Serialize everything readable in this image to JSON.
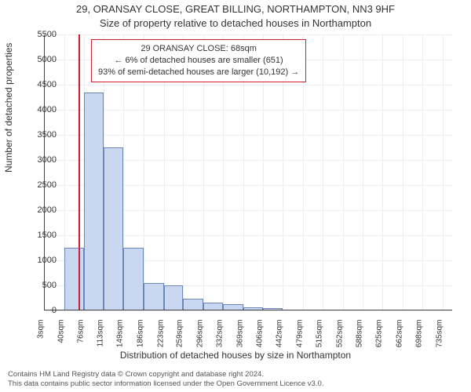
{
  "title_line1": "29, ORANSAY CLOSE, GREAT BILLING, NORTHAMPTON, NN3 9HF",
  "title_line2": "Size of property relative to detached houses in Northampton",
  "ylabel": "Number of detached properties",
  "xlabel": "Distribution of detached houses by size in Northampton",
  "chart": {
    "type": "histogram",
    "background_color": "#ffffff",
    "grid_color": "#eceef4",
    "bar_fill": "#c9d7f0",
    "bar_border": "#6b86b8",
    "marker_color": "#d02030",
    "marker_x": 68,
    "x_min": 3,
    "x_max": 753,
    "y_min": 0,
    "y_max": 5500,
    "y_ticks": [
      0,
      500,
      1000,
      1500,
      2000,
      2500,
      3000,
      3500,
      4000,
      4500,
      5000,
      5500
    ],
    "x_tick_labels": [
      "3sqm",
      "40sqm",
      "76sqm",
      "113sqm",
      "149sqm",
      "186sqm",
      "223sqm",
      "259sqm",
      "296sqm",
      "332sqm",
      "369sqm",
      "406sqm",
      "442sqm",
      "479sqm",
      "515sqm",
      "552sqm",
      "588sqm",
      "625sqm",
      "662sqm",
      "698sqm",
      "735sqm"
    ],
    "x_tick_values": [
      3,
      40,
      76,
      113,
      149,
      186,
      223,
      259,
      296,
      332,
      369,
      406,
      442,
      479,
      515,
      552,
      588,
      625,
      662,
      698,
      735
    ],
    "bars": [
      {
        "x0": 3,
        "x1": 40,
        "y": 0
      },
      {
        "x0": 40,
        "x1": 76,
        "y": 1250
      },
      {
        "x0": 76,
        "x1": 113,
        "y": 4350
      },
      {
        "x0": 113,
        "x1": 149,
        "y": 3250
      },
      {
        "x0": 149,
        "x1": 186,
        "y": 1250
      },
      {
        "x0": 186,
        "x1": 223,
        "y": 550
      },
      {
        "x0": 223,
        "x1": 259,
        "y": 500
      },
      {
        "x0": 259,
        "x1": 296,
        "y": 230
      },
      {
        "x0": 296,
        "x1": 332,
        "y": 150
      },
      {
        "x0": 332,
        "x1": 369,
        "y": 120
      },
      {
        "x0": 369,
        "x1": 406,
        "y": 70
      },
      {
        "x0": 406,
        "x1": 442,
        "y": 50
      }
    ],
    "title_fontsize": 13,
    "label_fontsize": 12,
    "tick_fontsize": 11
  },
  "annotation": {
    "line1": "29 ORANSAY CLOSE: 68sqm",
    "line2": "← 6% of detached houses are smaller (651)",
    "line3": "93% of semi-detached houses are larger (10,192) →",
    "border_color": "#d02030"
  },
  "footer": {
    "line1": "Contains HM Land Registry data © Crown copyright and database right 2024.",
    "line2": "This data contains public sector information licensed under the Open Government Licence v3.0."
  }
}
